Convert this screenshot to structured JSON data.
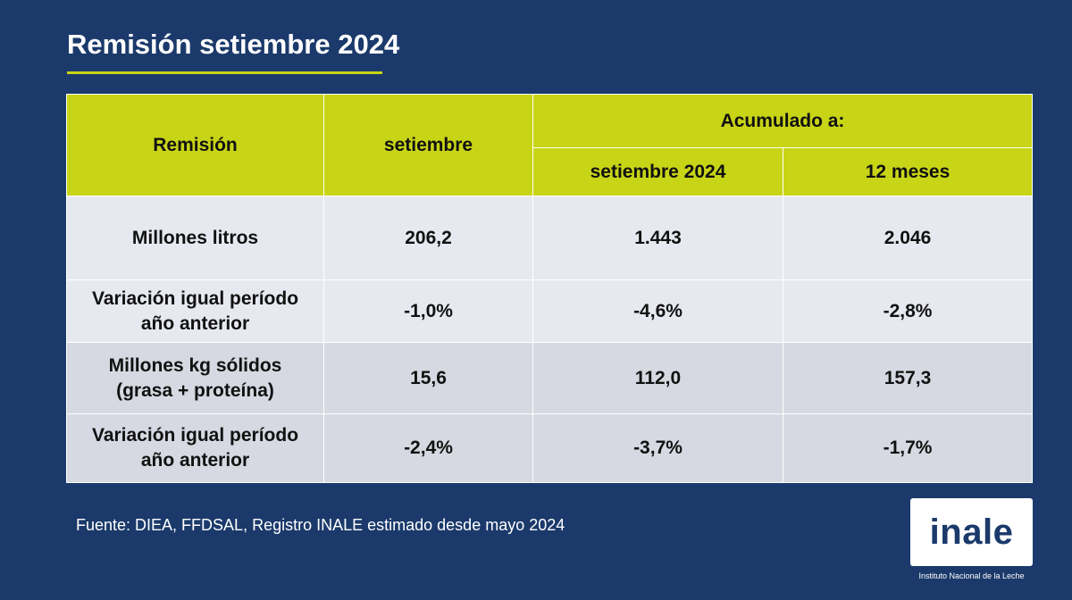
{
  "title": "Remisión setiembre 2024",
  "table": {
    "headers": {
      "col1": "Remisión",
      "col2": "setiembre",
      "group": "Acumulado a:",
      "sub1": "setiembre 2024",
      "sub2": "12 meses"
    },
    "rows": [
      {
        "label": "Millones litros",
        "values": [
          "206,2",
          "1.443",
          "2.046"
        ]
      },
      {
        "label_line1": "Variación igual período",
        "label_line2": "año anterior",
        "values": [
          "-1,0%",
          "-4,6%",
          "-2,8%"
        ]
      },
      {
        "label_line1": "Millones kg sólidos",
        "label_line2": "(grasa + proteína)",
        "values": [
          "15,6",
          "112,0",
          "157,3"
        ]
      },
      {
        "label_line1": "Variación igual período",
        "label_line2": "año anterior",
        "values": [
          "-2,4%",
          "-3,7%",
          "-1,7%"
        ]
      }
    ]
  },
  "source": "Fuente: DIEA, FFDSAL, Registro INALE estimado desde mayo 2024",
  "logo": {
    "word": "inale",
    "subtitle": "Instituto Nacional de la Leche"
  },
  "colors": {
    "background": "#1b3a6b",
    "accent": "#c8d416"
  }
}
